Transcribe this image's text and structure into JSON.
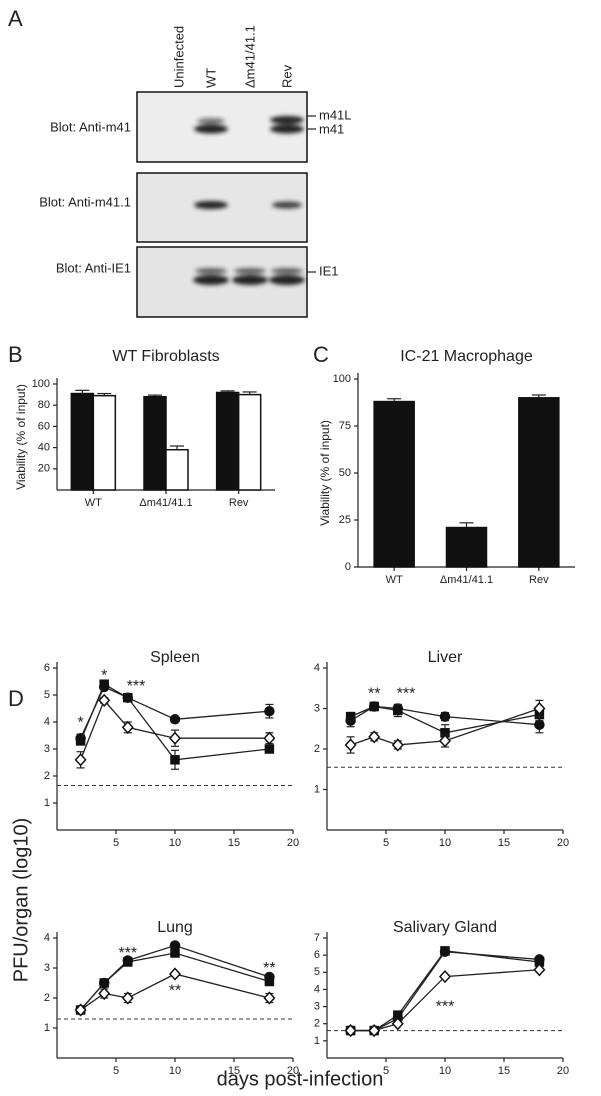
{
  "panels": {
    "a": "A",
    "b": "B",
    "c": "C",
    "d": "D"
  },
  "blot": {
    "lanes": [
      "Uninfected",
      "WT",
      "Δm41/41.1",
      "Rev"
    ],
    "rows": [
      {
        "label": "Blot: Anti-m41",
        "bands": [
          "m41L",
          "m41"
        ]
      },
      {
        "label": "Blot: Anti-m41.1",
        "bands": []
      },
      {
        "label": "Blot: Anti-IE1",
        "bands": [
          "IE1"
        ]
      }
    ]
  },
  "panel_d": {
    "ylabel": "PFU/organ (log10)",
    "xlabel": "days post-infection"
  },
  "chart_data": [
    {
      "type": "bar",
      "title": "WT Fibroblasts",
      "ylabel": "Viability (% of input)",
      "categories": [
        "WT",
        "Δm41/41.1",
        "Rev"
      ],
      "series": [
        {
          "color": "#111111",
          "values": [
            91,
            88,
            92
          ],
          "errors": [
            3,
            1.5,
            1.5
          ]
        },
        {
          "color": "#ffffff",
          "values": [
            89,
            38,
            90
          ],
          "errors": [
            2,
            3.5,
            2.5
          ]
        }
      ],
      "ylim": [
        0,
        100
      ],
      "yticks": [
        20,
        40,
        60,
        80,
        100
      ]
    },
    {
      "type": "bar",
      "title": "IC-21 Macrophage",
      "ylabel": "Viability (% of input)",
      "categories": [
        "WT",
        "Δm41/41.1",
        "Rev"
      ],
      "series": [
        {
          "color": "#111111",
          "values": [
            88,
            21,
            90
          ],
          "errors": [
            1.5,
            2.5,
            1.5
          ]
        }
      ],
      "ylim": [
        0,
        100
      ],
      "yticks": [
        0,
        25,
        50,
        75,
        100
      ]
    },
    {
      "type": "line",
      "title": "Spleen",
      "x": [
        2,
        4,
        6,
        10,
        18
      ],
      "xlim": [
        0,
        20
      ],
      "xticks": [
        5,
        10,
        15,
        20
      ],
      "ylim": [
        0,
        6
      ],
      "yticks": [
        1,
        2,
        3,
        4,
        5,
        6
      ],
      "reference_line": 1.65,
      "series": [
        {
          "marker": "circle",
          "filled": true,
          "values": [
            3.4,
            5.3,
            4.9,
            4.1,
            4.4
          ],
          "errors": [
            0.15,
            0.1,
            0.1,
            0.1,
            0.25
          ]
        },
        {
          "marker": "square",
          "filled": true,
          "values": [
            3.3,
            5.4,
            4.9,
            2.6,
            3.0
          ],
          "errors": [
            0.1,
            0.1,
            0.1,
            0.35,
            0.1
          ]
        },
        {
          "marker": "diamond",
          "filled": false,
          "values": [
            2.6,
            4.8,
            3.8,
            3.4,
            3.4
          ],
          "errors": [
            0.3,
            0.1,
            0.2,
            0.3,
            0.2
          ]
        }
      ],
      "annotations": [
        "*",
        "*",
        "***"
      ]
    },
    {
      "type": "line",
      "title": "Liver",
      "x": [
        2,
        4,
        6,
        10,
        18
      ],
      "xlim": [
        0,
        20
      ],
      "xticks": [
        5,
        10,
        15,
        20
      ],
      "ylim": [
        0,
        4
      ],
      "yticks": [
        1,
        2,
        3,
        4
      ],
      "reference_line": 1.55,
      "series": [
        {
          "marker": "circle",
          "filled": true,
          "values": [
            2.7,
            3.05,
            3.0,
            2.8,
            2.6
          ],
          "errors": [
            0.15,
            0.1,
            0.1,
            0.1,
            0.2
          ]
        },
        {
          "marker": "square",
          "filled": true,
          "values": [
            2.8,
            3.05,
            2.95,
            2.4,
            2.85
          ],
          "errors": [
            0.1,
            0.1,
            0.15,
            0.2,
            0.15
          ]
        },
        {
          "marker": "diamond",
          "filled": false,
          "values": [
            2.1,
            2.3,
            2.1,
            2.2,
            3.0
          ],
          "errors": [
            0.2,
            0.1,
            0.1,
            0.15,
            0.2
          ]
        }
      ],
      "annotations": [
        "**",
        "***"
      ]
    },
    {
      "type": "line",
      "title": "Lung",
      "x": [
        2,
        4,
        6,
        10,
        18
      ],
      "xlim": [
        0,
        20
      ],
      "xticks": [
        5,
        10,
        15,
        20
      ],
      "ylim": [
        0,
        4
      ],
      "yticks": [
        1,
        2,
        3,
        4
      ],
      "reference_line": 1.3,
      "series": [
        {
          "marker": "circle",
          "filled": true,
          "values": [
            1.6,
            2.5,
            3.25,
            3.75,
            2.7
          ],
          "errors": [
            0.05,
            0.05,
            0.05,
            0.05,
            0.1
          ]
        },
        {
          "marker": "square",
          "filled": true,
          "values": [
            1.6,
            2.5,
            3.2,
            3.5,
            2.55
          ],
          "errors": [
            0.05,
            0.05,
            0.05,
            0.05,
            0.1
          ]
        },
        {
          "marker": "diamond",
          "filled": false,
          "values": [
            1.6,
            2.15,
            2.0,
            2.8,
            2.0
          ],
          "errors": [
            0.05,
            0.15,
            0.15,
            0.05,
            0.15
          ]
        }
      ],
      "annotations": [
        "***",
        "**",
        "**"
      ]
    },
    {
      "type": "line",
      "title": "Salivary Gland",
      "x": [
        2,
        4,
        6,
        10,
        18
      ],
      "xlim": [
        0,
        20
      ],
      "xticks": [
        5,
        10,
        15,
        20
      ],
      "ylim": [
        0,
        7
      ],
      "yticks": [
        1,
        2,
        3,
        4,
        5,
        6,
        7
      ],
      "reference_line": 1.6,
      "series": [
        {
          "marker": "circle",
          "filled": true,
          "values": [
            1.6,
            1.6,
            2.3,
            6.2,
            5.75
          ],
          "errors": [
            0.1,
            0.1,
            0.2,
            0.1,
            0.1
          ]
        },
        {
          "marker": "square",
          "filled": true,
          "values": [
            1.6,
            1.6,
            2.5,
            6.25,
            5.6
          ],
          "errors": [
            0.1,
            0.1,
            0.2,
            0.1,
            0.1
          ]
        },
        {
          "marker": "diamond",
          "filled": false,
          "values": [
            1.6,
            1.6,
            2.0,
            4.75,
            5.15
          ],
          "errors": [
            0.1,
            0.1,
            0.1,
            0.1,
            0.1
          ]
        }
      ],
      "annotations": [
        "***"
      ]
    }
  ]
}
